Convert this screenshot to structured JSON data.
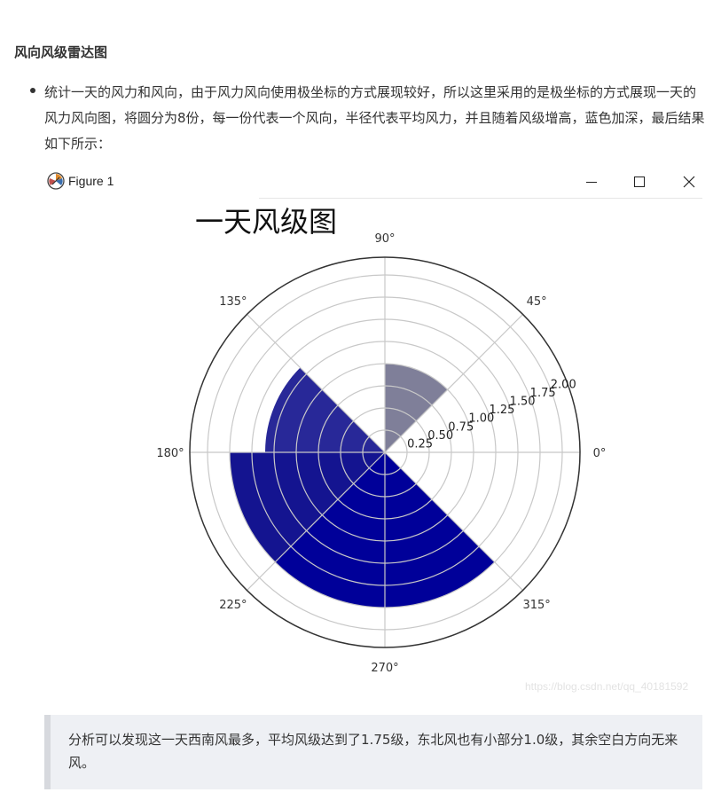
{
  "heading": "风向风级雷达图",
  "bullet": "统计一天的风力和风向，由于风力风向使用极坐标的方式展现较好，所以这里采用的是极坐标的方式展现一天的风力风向图，将圆分为8份，每一份代表一个风向，半径代表平均风力，并且随着风级增高，蓝色加深，最后结果如下所示：",
  "figure_window": {
    "title": "Figure 1",
    "icons": [
      "figure-app-icon",
      "minimize-icon",
      "maximize-icon",
      "close-icon"
    ]
  },
  "watermark": "https://blog.csdn.net/qq_40181592",
  "quote": "分析可以发现这一天西南风最多，平均风级达到了1.75级，东北风也有小部分1.0级，其余空白方向无来风。",
  "chart_data": {
    "type": "polar-bar",
    "title": "一天风级图",
    "angle_ticks": [
      "0°",
      "45°",
      "90°",
      "135°",
      "180°",
      "225°",
      "270°",
      "315°"
    ],
    "radial_ticks": [
      "0.25",
      "0.50",
      "0.75",
      "1.00",
      "1.25",
      "1.50",
      "1.75",
      "2.00"
    ],
    "rlim": [
      0,
      2.2
    ],
    "grid": true,
    "sectors": [
      {
        "start_deg": 0,
        "end_deg": 45,
        "value": 0,
        "color": ""
      },
      {
        "start_deg": 45,
        "end_deg": 90,
        "value": 1.0,
        "color": "#7f7f99"
      },
      {
        "start_deg": 90,
        "end_deg": 135,
        "value": 0,
        "color": ""
      },
      {
        "start_deg": 135,
        "end_deg": 180,
        "value": 1.35,
        "color": "#282898"
      },
      {
        "start_deg": 180,
        "end_deg": 225,
        "value": 1.75,
        "color": "#141490"
      },
      {
        "start_deg": 225,
        "end_deg": 270,
        "value": 1.75,
        "color": "#000099"
      },
      {
        "start_deg": 270,
        "end_deg": 315,
        "value": 1.75,
        "color": "#000099"
      },
      {
        "start_deg": 315,
        "end_deg": 360,
        "value": 0,
        "color": ""
      }
    ],
    "colors": {
      "grid": "#c8c8c8",
      "frame": "#333333"
    }
  }
}
